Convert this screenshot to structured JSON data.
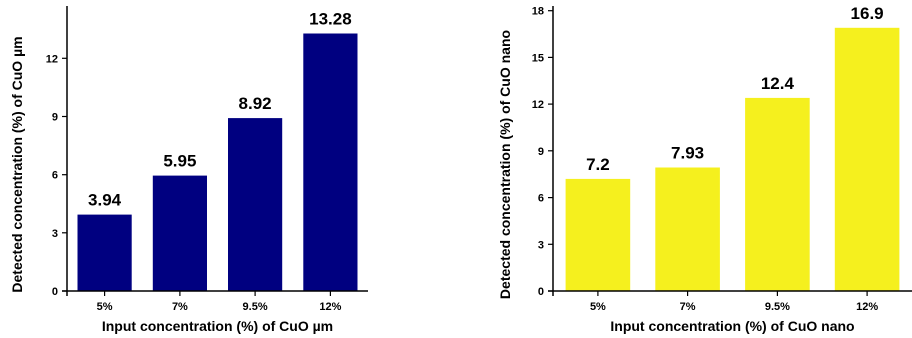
{
  "chart_data": [
    {
      "type": "bar",
      "categories": [
        "5%",
        "7%",
        "9.5%",
        "12%"
      ],
      "values": [
        3.94,
        5.95,
        8.92,
        13.28
      ],
      "data_labels": [
        "3.94",
        "5.95",
        "8.92",
        "13.28"
      ],
      "title": "",
      "xlabel": "Input concentration (%) of CuO µm",
      "ylabel": "Detected concentration (%) of CuO µm",
      "ylim": [
        0,
        14.7
      ],
      "yticks": [
        0,
        3,
        6,
        9,
        12
      ],
      "grid": false,
      "bar_color": "#000080"
    },
    {
      "type": "bar",
      "categories": [
        "5%",
        "7%",
        "9.5%",
        "12%"
      ],
      "values": [
        7.2,
        7.93,
        12.4,
        16.9
      ],
      "data_labels": [
        "7.2",
        "7.93",
        "12.4",
        "16.9"
      ],
      "title": "",
      "xlabel": "Input concentration (%) of CuO nano",
      "ylabel": "Detected concentration (%) of CuO nano",
      "ylim": [
        0,
        18.3
      ],
      "yticks": [
        0,
        3,
        6,
        9,
        12,
        15,
        18
      ],
      "grid": false,
      "bar_color": "#f5f01e"
    }
  ]
}
